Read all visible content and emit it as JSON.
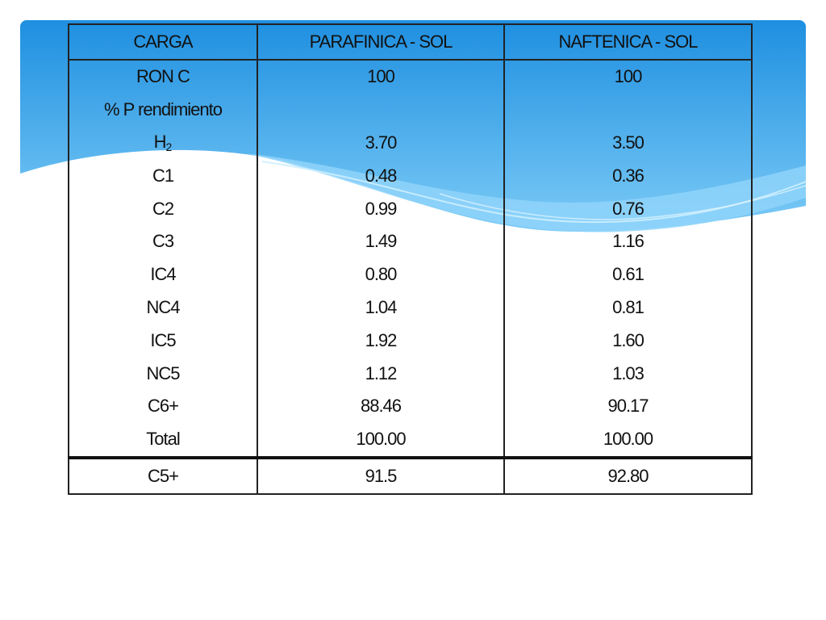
{
  "colors": {
    "banner_top": "#1e8fe0",
    "banner_bottom": "#7ccbf6",
    "wave_light": "#8fd3fa",
    "wave_pale": "#cdeefd",
    "border": "#222222"
  },
  "table": {
    "headers": [
      "CARGA",
      "PARAFINICA - SOL",
      "NAFTENICA - SOL"
    ],
    "rows": [
      {
        "label": "RON C",
        "parafinica": "100",
        "naftenica": "100"
      },
      {
        "label": "% P rendimiento",
        "parafinica": "",
        "naftenica": ""
      },
      {
        "label_main": "H",
        "label_sub": "2",
        "parafinica": "3.70",
        "naftenica": "3.50"
      },
      {
        "label": "C1",
        "parafinica": "0.48",
        "naftenica": "0.36"
      },
      {
        "label": "C2",
        "parafinica": "0.99",
        "naftenica": "0.76"
      },
      {
        "label": "C3",
        "parafinica": "1.49",
        "naftenica": "1.16"
      },
      {
        "label": "IC4",
        "parafinica": "0.80",
        "naftenica": "0.61"
      },
      {
        "label": "NC4",
        "parafinica": "1.04",
        "naftenica": "0.81"
      },
      {
        "label": "IC5",
        "parafinica": "1.92",
        "naftenica": "1.60"
      },
      {
        "label": "NC5",
        "parafinica": "1.12",
        "naftenica": "1.03"
      },
      {
        "label": "C6+",
        "parafinica": "88.46",
        "naftenica": "90.17"
      },
      {
        "label": "Total",
        "parafinica": "100.00",
        "naftenica": "100.00"
      }
    ],
    "footer": {
      "label": "C5+",
      "parafinica": "91.5",
      "naftenica": "92.80"
    }
  }
}
